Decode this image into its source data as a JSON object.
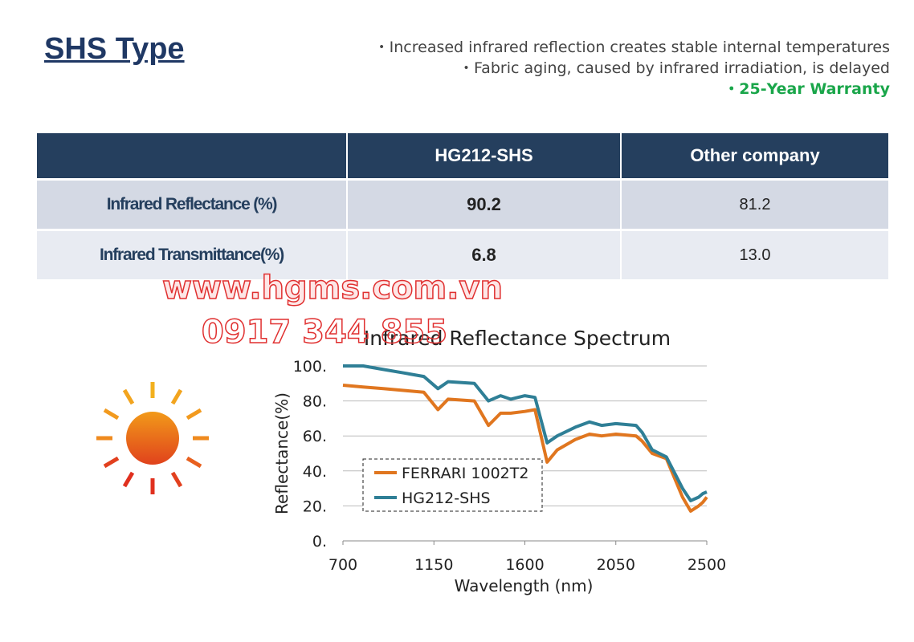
{
  "header": {
    "title": "SHS Type",
    "bullets": [
      "・Increased infrared reflection creates stable internal temperatures",
      "・Fabric aging, caused by infrared irradiation, is delayed",
      "・25-Year Warranty"
    ]
  },
  "table": {
    "columns": [
      "HG212-SHS",
      "Other company"
    ],
    "rows": [
      [
        "Infrared Reflectance (%)",
        "90.2",
        "81.2"
      ],
      [
        "Infrared Transmittance(%)",
        "6.8",
        "13.0"
      ]
    ]
  },
  "watermark": [
    "www.hgms.com.vn",
    "0917 344 855"
  ],
  "chart_data": {
    "type": "line",
    "title": "Infrared Reflectance Spectrum",
    "x_label": "Wavelength (nm)",
    "y_label": "Reflectance(%)",
    "x": [
      700,
      800,
      900,
      1000,
      1100,
      1170,
      1220,
      1350,
      1420,
      1480,
      1530,
      1600,
      1650,
      1710,
      1760,
      1850,
      1920,
      1980,
      2050,
      2150,
      2180,
      2230,
      2300,
      2380,
      2420,
      2460,
      2480,
      2500
    ],
    "series": [
      {
        "name": "FERRARI 1002T2",
        "color": "#e0761f",
        "values": [
          89,
          88,
          87,
          86,
          85,
          75,
          81,
          80,
          66,
          73,
          73,
          74,
          75,
          45,
          52,
          58,
          61,
          60,
          61,
          60,
          57,
          50,
          47,
          25,
          17,
          20,
          22,
          25
        ]
      },
      {
        "name": "HG212-SHS",
        "color": "#2f7f96",
        "values": [
          100,
          100,
          98,
          96,
          94,
          87,
          91,
          90,
          80,
          83,
          81,
          83,
          82,
          56,
          60,
          65,
          68,
          66,
          67,
          66,
          62,
          52,
          48,
          30,
          23,
          25,
          27,
          28
        ]
      }
    ],
    "xlim": [
      700,
      2500
    ],
    "xticks": [
      700,
      1150,
      1600,
      2050,
      2500
    ],
    "ylim": [
      0,
      100
    ],
    "yticks": [
      {
        "value": 0,
        "label": "0."
      },
      {
        "value": 20,
        "label": "20."
      },
      {
        "value": 40,
        "label": "40."
      },
      {
        "value": 60,
        "label": "60."
      },
      {
        "value": 80,
        "label": "80."
      },
      {
        "value": 100,
        "label": "100."
      }
    ],
    "grid": true,
    "legend": "lower left"
  }
}
